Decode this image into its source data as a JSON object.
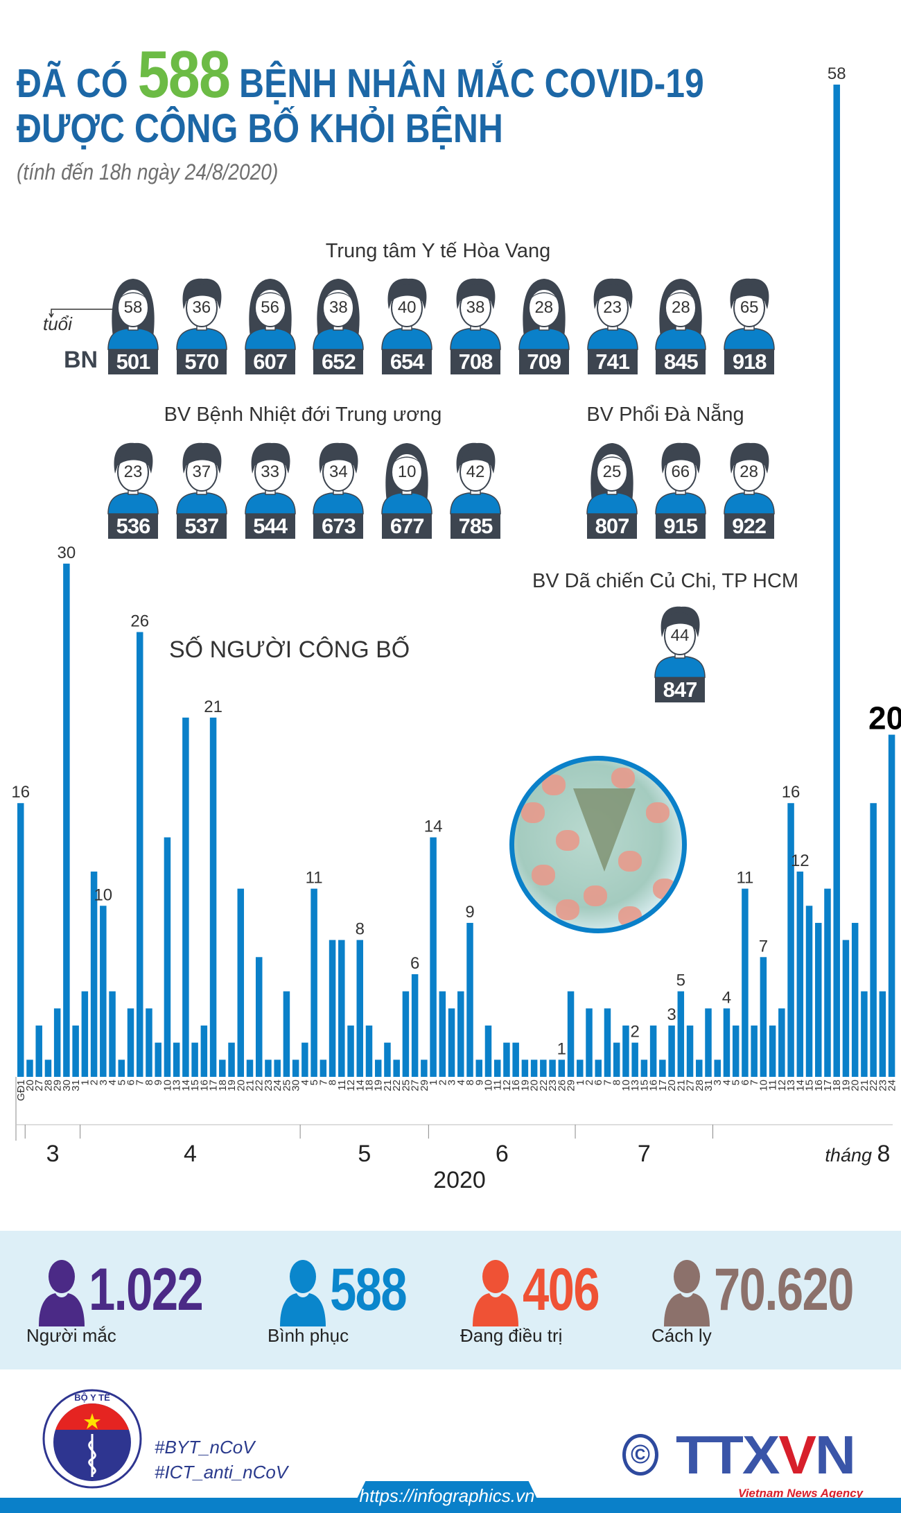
{
  "header": {
    "title_prefix": "ĐÃ CÓ",
    "title_number": "588",
    "title_suffix": "BỆNH NHÂN MẮC COVID-19",
    "title_line2": "ĐƯỢC CÔNG BỐ KHỎI BỆNH",
    "subtitle": "(tính đến 18h ngày 24/8/2020)"
  },
  "legend": {
    "age_label": "tuổi",
    "patient_label": "BN"
  },
  "hospitals": [
    {
      "name": "Trung tâm Y tế Hòa Vang",
      "patients": [
        {
          "bn": "501",
          "age": "58",
          "icon": "female"
        },
        {
          "bn": "570",
          "age": "36",
          "icon": "male"
        },
        {
          "bn": "607",
          "age": "56",
          "icon": "female"
        },
        {
          "bn": "652",
          "age": "38",
          "icon": "female"
        },
        {
          "bn": "654",
          "age": "40",
          "icon": "male"
        },
        {
          "bn": "708",
          "age": "38",
          "icon": "male"
        },
        {
          "bn": "709",
          "age": "28",
          "icon": "female"
        },
        {
          "bn": "741",
          "age": "23",
          "icon": "male"
        },
        {
          "bn": "845",
          "age": "28",
          "icon": "female"
        },
        {
          "bn": "918",
          "age": "65",
          "icon": "male"
        }
      ]
    },
    {
      "name": "BV Bệnh Nhiệt đới Trung ương",
      "patients": [
        {
          "bn": "536",
          "age": "23",
          "icon": "male"
        },
        {
          "bn": "537",
          "age": "37",
          "icon": "male"
        },
        {
          "bn": "544",
          "age": "33",
          "icon": "male"
        },
        {
          "bn": "673",
          "age": "34",
          "icon": "male"
        },
        {
          "bn": "677",
          "age": "10",
          "icon": "female"
        },
        {
          "bn": "785",
          "age": "42",
          "icon": "male"
        }
      ]
    },
    {
      "name": "BV Phổi Đà Nẵng",
      "patients": [
        {
          "bn": "807",
          "age": "25",
          "icon": "female"
        },
        {
          "bn": "915",
          "age": "66",
          "icon": "male"
        },
        {
          "bn": "922",
          "age": "28",
          "icon": "male"
        }
      ]
    },
    {
      "name": "BV Dã chiến Củ Chi, TP HCM",
      "patients": [
        {
          "bn": "847",
          "age": "44",
          "icon": "male"
        }
      ]
    }
  ],
  "chart_data": {
    "type": "bar",
    "title": "SỐ NGƯỜI CÔNG BỐ",
    "year_label": "2020",
    "month_prefix": "tháng",
    "color": "#0a80c9",
    "ylim": [
      0,
      58
    ],
    "groups": [
      {
        "label": "",
        "days": [
          "GĐ1"
        ],
        "values": [
          16
        ],
        "labeled": [
          "GĐ1"
        ]
      },
      {
        "label": "3",
        "days": [
          "20",
          "27",
          "28",
          "29",
          "30",
          "31"
        ],
        "values": [
          1,
          3,
          1,
          4,
          30,
          3
        ],
        "labeled": [
          "30"
        ]
      },
      {
        "label": "4",
        "days": [
          "1",
          "2",
          "3",
          "4",
          "5",
          "6",
          "7",
          "8",
          "9",
          "10",
          "13",
          "14",
          "15",
          "16",
          "17",
          "18",
          "19",
          "20",
          "21",
          "22",
          "23",
          "24",
          "25",
          "30"
        ],
        "values": [
          5,
          12,
          10,
          5,
          1,
          4,
          26,
          4,
          2,
          14,
          2,
          21,
          2,
          3,
          21,
          1,
          2,
          11,
          1,
          7,
          1,
          1,
          5,
          1
        ],
        "labeled": [
          "3",
          "7",
          "17"
        ]
      },
      {
        "label": "5",
        "days": [
          "4",
          "5",
          "7",
          "8",
          "11",
          "12",
          "14",
          "18",
          "19",
          "21",
          "22",
          "25",
          "27",
          "29"
        ],
        "values": [
          2,
          11,
          1,
          8,
          8,
          3,
          8,
          3,
          1,
          2,
          1,
          5,
          6,
          1
        ],
        "labeled": [
          "5",
          "14",
          "27"
        ]
      },
      {
        "label": "6",
        "days": [
          "1",
          "2",
          "3",
          "4",
          "8",
          "9",
          "10",
          "11",
          "12",
          "16",
          "19",
          "20",
          "22",
          "23",
          "26",
          "29"
        ],
        "values": [
          14,
          5,
          4,
          5,
          9,
          1,
          3,
          1,
          2,
          2,
          1,
          1,
          1,
          1,
          1,
          5
        ],
        "labeled": [
          "1",
          "8",
          "26"
        ]
      },
      {
        "label": "7",
        "days": [
          "1",
          "2",
          "6",
          "7",
          "8",
          "10",
          "13",
          "15",
          "16",
          "17",
          "20",
          "21",
          "27",
          "28",
          "31"
        ],
        "values": [
          1,
          4,
          1,
          4,
          2,
          3,
          2,
          1,
          3,
          1,
          3,
          5,
          3,
          1,
          4
        ],
        "labeled": [
          "13",
          "20",
          "21"
        ]
      },
      {
        "label": "8",
        "days": [
          "3",
          "4",
          "5",
          "6",
          "7",
          "10",
          "11",
          "12",
          "13",
          "14",
          "15",
          "16",
          "17",
          "18",
          "19",
          "20",
          "21",
          "22",
          "23",
          "24"
        ],
        "values": [
          1,
          4,
          3,
          11,
          3,
          7,
          3,
          4,
          16,
          12,
          10,
          9,
          11,
          58,
          8,
          9,
          5,
          16,
          5,
          20
        ],
        "labeled": [
          "4",
          "6",
          "10",
          "13",
          "14",
          "18",
          "24"
        ],
        "highlight": "24"
      }
    ]
  },
  "stats": [
    {
      "value": "1.022",
      "label": "Người mắc",
      "color": "#4b2a86"
    },
    {
      "value": "588",
      "label": "Bình phục",
      "color": "#0a86cc"
    },
    {
      "value": "406",
      "label": "Đang điều trị",
      "color": "#ef5235"
    },
    {
      "value": "70.620",
      "label": "Cách ly",
      "color": "#8c716b"
    }
  ],
  "footer": {
    "hashtag1": "#BYT_nCoV",
    "hashtag2": "#ICT_anti_nCoV",
    "url": "https://infographics.vn",
    "copyright": "©",
    "agency_logo": "TTXVN",
    "agency_name": "Vietnam News Agency",
    "ministry_logo": "BỘ Y TẾ · MINISTRY OF HEALTH"
  }
}
